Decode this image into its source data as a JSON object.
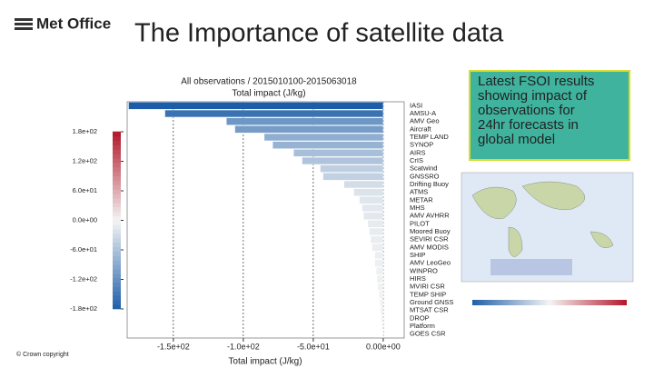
{
  "slide": {
    "logo": "Met Office",
    "title": "The Importance of satellite data",
    "callout": [
      "Latest FSOI results",
      "showing impact of",
      "observations for",
      "24hr forecasts in",
      "global model"
    ],
    "footer": "© Crown copyright"
  },
  "chart_data": {
    "type": "hbar",
    "title": "All observations / 2015010100-2015063018",
    "subtitle": "Total impact (J/kg)",
    "xlabel": "Total impact (J/kg)",
    "categories": [
      "IASI",
      "AMSU-A",
      "AMV Geo",
      "Aircraft",
      "TEMP LAND",
      "SYNOP",
      "AIRS",
      "CrIS",
      "Scatwind",
      "GNSSRO",
      "Drifting Buoy",
      "ATMS",
      "METAR",
      "MHS",
      "AMV AVHRR",
      "PILOT",
      "Moored Buoy",
      "SEVIRI CSR",
      "AMV MODIS",
      "SHIP",
      "AMV LeoGeo",
      "WINPRO",
      "HIRS",
      "MVIRI CSR",
      "TEMP SHIP",
      "Ground GNSS",
      "MTSAT CSR",
      "DROP",
      "Platform",
      "GOES CSR"
    ],
    "values": [
      -182,
      -156,
      -112,
      -106,
      -85,
      -79,
      -64,
      -58,
      -45,
      -43,
      -28,
      -21,
      -17,
      -15,
      -14,
      -11,
      -10,
      -9,
      -8,
      -6,
      -6,
      -5,
      -4.5,
      -4,
      -3,
      -2.5,
      -2,
      -1.5,
      -1,
      -0.5
    ],
    "xlim": [
      -183,
      15
    ],
    "xticks": [
      {
        "value": -150,
        "label": "-1.5e+02"
      },
      {
        "value": -100,
        "label": "-1.0e+02"
      },
      {
        "value": -50,
        "label": "-5.0e+01"
      },
      {
        "value": 0,
        "label": "0.00e+00"
      }
    ],
    "grid": true,
    "colormap": [
      "#1f5fa8",
      "#f4f4f4",
      "#b2182b"
    ],
    "clim": [
      -180,
      180
    ],
    "colorbar_ticks": [
      {
        "value": 180,
        "label": "1.8e+02"
      },
      {
        "value": 120,
        "label": "1.2e+02"
      },
      {
        "value": 60,
        "label": "6.0e+01"
      },
      {
        "value": 0,
        "label": "0.0e+00"
      },
      {
        "value": -60,
        "label": "-6.0e+01"
      },
      {
        "value": -120,
        "label": "-1.2e+02"
      },
      {
        "value": -180,
        "label": "-1.8e+02"
      }
    ]
  }
}
